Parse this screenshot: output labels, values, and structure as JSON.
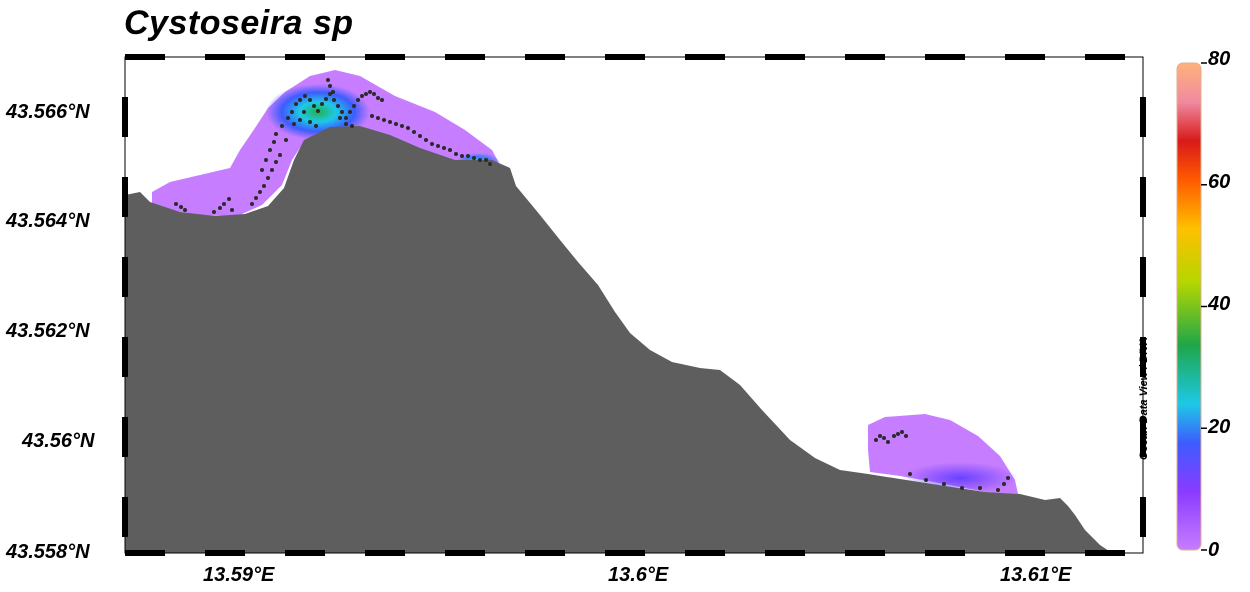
{
  "title": "Cystoseira sp",
  "x_axis": {
    "ticks": [
      "13.59°E",
      "13.6°E",
      "13.61°E"
    ]
  },
  "y_axis": {
    "ticks": [
      "43.566°N",
      "43.564°N",
      "43.562°N",
      "43.56°N",
      "43.558°N"
    ]
  },
  "colorbar": {
    "ticks": [
      "80",
      "60",
      "40",
      "20",
      "0"
    ],
    "min": 0,
    "max": 80,
    "colors": [
      "#c77dff",
      "#8a3bff",
      "#2f6bff",
      "#1ec8e6",
      "#22b14c",
      "#e0e000",
      "#ffb000",
      "#ff4000",
      "#d81a1a",
      "#f59aa0",
      "#ffb27a"
    ]
  },
  "watermark": "Ocean Data View / DIVA",
  "land_color": "#5e5e5e"
}
